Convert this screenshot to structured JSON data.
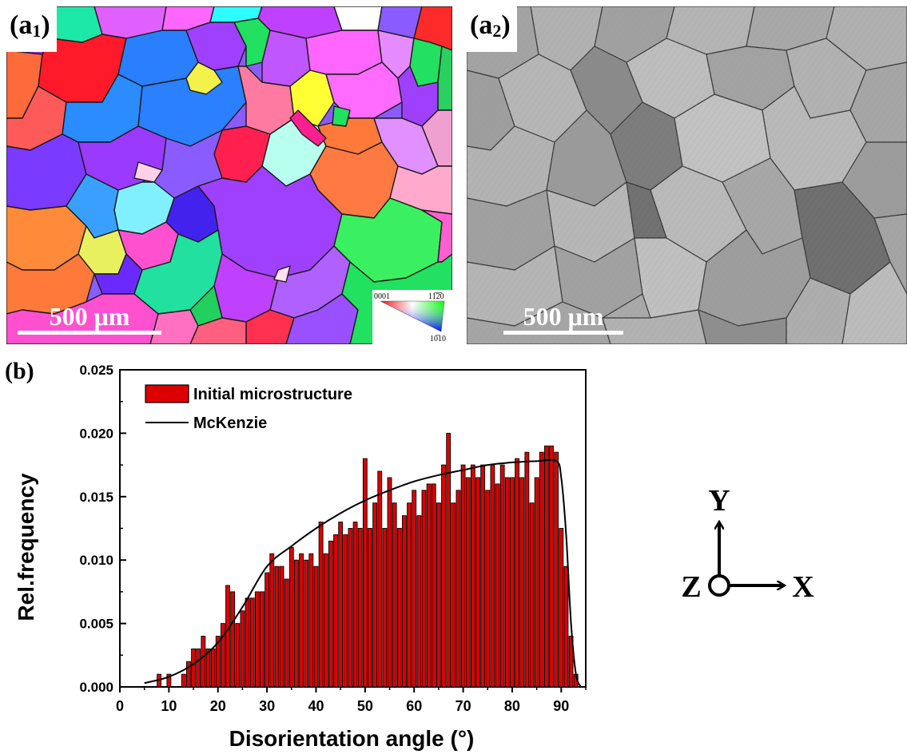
{
  "panels": {
    "a1": {
      "label_main": "(a",
      "label_sub": "1",
      "label_end": ")",
      "scalebar": "500 μm",
      "ipf_key": {
        "corner_top_left": "0001",
        "corner_top_right": "11̅2̅0",
        "corner_bottom": "10̅10"
      }
    },
    "a2": {
      "label_main": "(a",
      "label_sub": "2",
      "label_end": ")",
      "scalebar": "500 μm"
    },
    "b": {
      "label": "(b)"
    }
  },
  "axes_triad": {
    "y_label": "Y",
    "x_label": "X",
    "z_label": "Z"
  },
  "chart_data": {
    "type": "bar",
    "xlabel": "Disorientation angle (°)",
    "ylabel": "Rel.frequency",
    "xlim": [
      0,
      95
    ],
    "ylim": [
      0,
      0.025
    ],
    "x_ticks": [
      "0",
      "10",
      "20",
      "30",
      "40",
      "50",
      "60",
      "70",
      "80",
      "90"
    ],
    "y_ticks": [
      "0.000",
      "0.005",
      "0.010",
      "0.015",
      "0.020",
      "0.025"
    ],
    "legend": {
      "placement": "top-left",
      "bar_label": "Initial microstructure",
      "line_label": "McKenzie"
    },
    "colors": {
      "bars": "#dd0000",
      "line": "#000000"
    },
    "series": [
      {
        "name": "Initial microstructure",
        "kind": "bar",
        "bin_width": 1,
        "x": [
          8,
          9,
          10,
          11,
          12,
          13,
          14,
          15,
          16,
          17,
          18,
          19,
          20,
          21,
          22,
          23,
          24,
          25,
          26,
          27,
          28,
          29,
          30,
          31,
          32,
          33,
          34,
          35,
          36,
          37,
          38,
          39,
          40,
          41,
          42,
          43,
          44,
          45,
          46,
          47,
          48,
          49,
          50,
          51,
          52,
          53,
          54,
          55,
          56,
          57,
          58,
          59,
          60,
          61,
          62,
          63,
          64,
          65,
          66,
          67,
          68,
          69,
          70,
          71,
          72,
          73,
          74,
          75,
          76,
          77,
          78,
          79,
          80,
          81,
          82,
          83,
          84,
          85,
          86,
          87,
          88,
          89,
          90,
          91,
          92,
          93
        ],
        "values": [
          0.001,
          0,
          0.001,
          0,
          0,
          0.001,
          0.002,
          0.003,
          0.003,
          0.004,
          0.003,
          0.003,
          0.004,
          0.005,
          0.008,
          0.0075,
          0.005,
          0.006,
          0.007,
          0.007,
          0.0075,
          0.0075,
          0.009,
          0.0105,
          0.0095,
          0.0095,
          0.0085,
          0.011,
          0.01,
          0.0105,
          0.01,
          0.0105,
          0.0095,
          0.013,
          0.0105,
          0.0115,
          0.012,
          0.013,
          0.012,
          0.0125,
          0.013,
          0.0125,
          0.018,
          0.0125,
          0.0145,
          0.017,
          0.0125,
          0.0165,
          0.0145,
          0.0125,
          0.0135,
          0.0145,
          0.0155,
          0.0135,
          0.0155,
          0.016,
          0.016,
          0.0145,
          0.0175,
          0.02,
          0.0145,
          0.0155,
          0.0175,
          0.0165,
          0.0175,
          0.0165,
          0.0175,
          0.0155,
          0.0175,
          0.016,
          0.0175,
          0.0165,
          0.0165,
          0.018,
          0.0165,
          0.0185,
          0.0145,
          0.0165,
          0.0185,
          0.019,
          0.019,
          0.0185,
          0.0125,
          0.0095,
          0.004,
          0.001
        ]
      },
      {
        "name": "McKenzie",
        "kind": "line",
        "x": [
          5,
          10,
          15,
          20,
          25,
          30,
          35,
          40,
          45,
          50,
          55,
          60,
          65,
          70,
          75,
          80,
          85,
          89,
          90,
          91,
          92,
          93,
          94
        ],
        "values": [
          0.0003,
          0.0008,
          0.0018,
          0.0035,
          0.0063,
          0.0095,
          0.0111,
          0.0125,
          0.0137,
          0.0147,
          0.0155,
          0.0162,
          0.0167,
          0.0171,
          0.0175,
          0.0177,
          0.0178,
          0.0178,
          0.0165,
          0.012,
          0.005,
          0.001,
          0
        ]
      }
    ]
  }
}
